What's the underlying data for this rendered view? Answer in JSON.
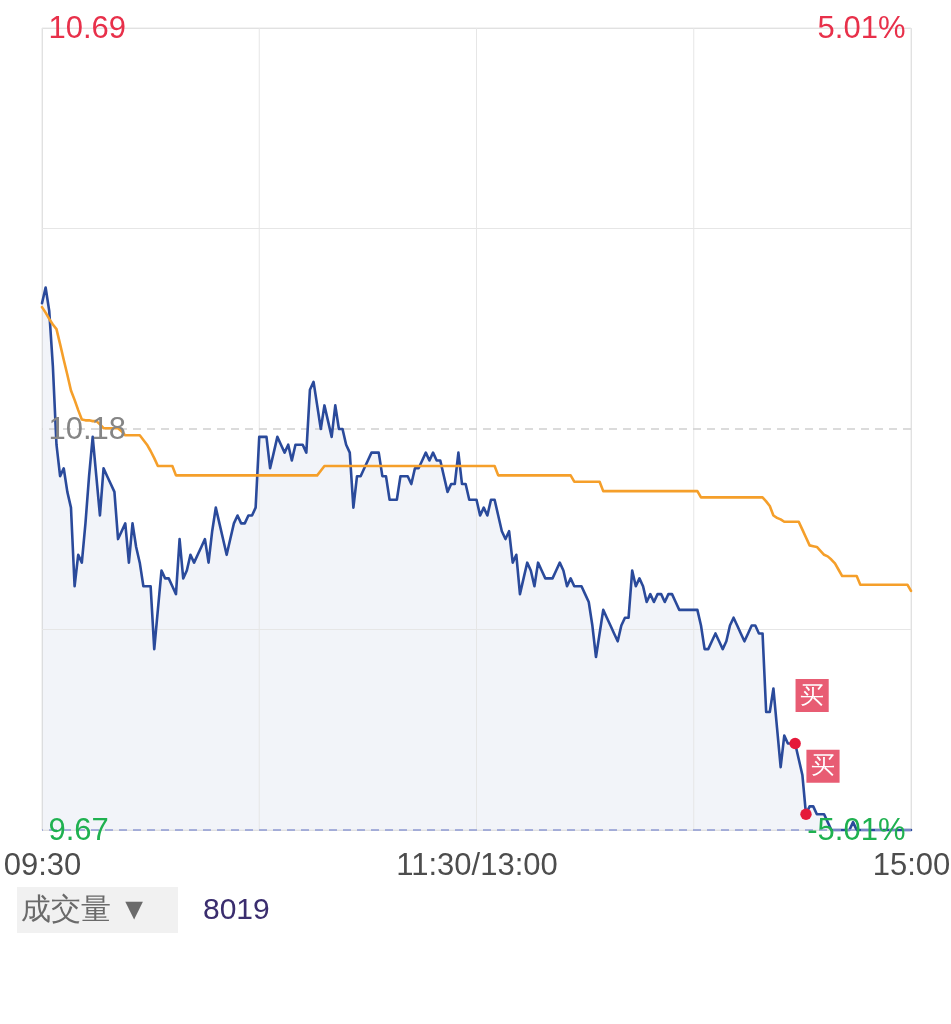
{
  "chart_data": {
    "type": "area",
    "categories": [
      "09:30",
      null,
      null,
      null,
      null,
      null,
      null,
      null,
      null,
      null,
      null,
      null,
      null,
      null,
      null,
      null,
      null,
      null,
      null,
      null,
      null,
      null,
      null,
      null,
      null,
      null,
      null,
      null,
      null,
      null,
      null,
      null,
      null,
      null,
      null,
      null,
      null,
      null,
      null,
      null,
      null,
      null,
      null,
      null,
      null,
      null,
      null,
      null,
      null,
      null,
      null,
      null,
      null,
      null,
      null,
      null,
      null,
      null,
      null,
      null,
      null,
      null,
      null,
      null,
      null,
      null,
      null,
      null,
      null,
      null,
      null,
      null,
      null,
      null,
      null,
      null,
      null,
      null,
      null,
      null,
      null,
      null,
      null,
      null,
      null,
      null,
      null,
      null,
      null,
      null,
      null,
      null,
      null,
      null,
      null,
      null,
      null,
      null,
      null,
      null,
      null,
      null,
      null,
      null,
      null,
      null,
      null,
      null,
      null,
      null,
      null,
      null,
      null,
      null,
      null,
      null,
      null,
      null,
      null,
      null,
      "11:30/13:00",
      null,
      null,
      null,
      null,
      null,
      null,
      null,
      null,
      null,
      null,
      null,
      null,
      null,
      null,
      null,
      null,
      null,
      null,
      null,
      null,
      null,
      null,
      null,
      null,
      null,
      null,
      null,
      null,
      null,
      null,
      null,
      null,
      null,
      null,
      null,
      null,
      null,
      null,
      null,
      null,
      null,
      null,
      null,
      null,
      null,
      null,
      null,
      null,
      null,
      null,
      null,
      null,
      null,
      null,
      null,
      null,
      null,
      null,
      null,
      null,
      null,
      null,
      null,
      null,
      null,
      null,
      null,
      null,
      null,
      null,
      null,
      null,
      null,
      null,
      null,
      null,
      null,
      null,
      null,
      null,
      null,
      null,
      null,
      null,
      null,
      null,
      null,
      null,
      null,
      null,
      null,
      null,
      null,
      null,
      null,
      null,
      null,
      null,
      null,
      null,
      null,
      null,
      null,
      null,
      null,
      null,
      null,
      null,
      null,
      null,
      null,
      null,
      null,
      null,
      null,
      null,
      null,
      null,
      null,
      "15:00"
    ],
    "ylim": [
      9.67,
      10.69
    ],
    "yticks": [
      10.69,
      {
        "value": 10.435,
        "label": null
      },
      10.18,
      {
        "value": 9.925,
        "label": null
      },
      9.67
    ],
    "y2lim": [
      -5.01,
      5.01
    ],
    "y2ticks": [
      {
        "value": 5.01,
        "label": "5.01%"
      },
      {
        "value": -5.01,
        "label": "-5.01%"
      }
    ],
    "grid": true,
    "series": [
      {
        "color": "#2a4a9b",
        "values": [
          10.34,
          10.36,
          10.33,
          10.26,
          10.16,
          10.12,
          10.13,
          10.1,
          10.08,
          9.98,
          10.02,
          10.01,
          10.06,
          10.12,
          10.17,
          10.12,
          10.07,
          10.13,
          10.12,
          10.11,
          10.1,
          10.04,
          10.05,
          10.06,
          10.01,
          10.06,
          10.03,
          10.01,
          9.98,
          9.98,
          9.98,
          9.9,
          9.95,
          10.0,
          9.99,
          9.99,
          9.98,
          9.97,
          10.04,
          9.99,
          10.0,
          10.02,
          10.01,
          10.02,
          10.03,
          10.04,
          10.01,
          10.05,
          10.08,
          10.06,
          10.04,
          10.02,
          10.04,
          10.06,
          10.07,
          10.06,
          10.06,
          10.07,
          10.07,
          10.08,
          10.17,
          10.17,
          10.17,
          10.13,
          10.15,
          10.17,
          10.16,
          10.15,
          10.16,
          10.14,
          10.16,
          10.16,
          10.16,
          10.15,
          10.23,
          10.24,
          10.21,
          10.18,
          10.21,
          10.19,
          10.17,
          10.21,
          10.18,
          10.18,
          10.16,
          10.15,
          10.08,
          10.12,
          10.12,
          10.13,
          10.14,
          10.15,
          10.15,
          10.15,
          10.12,
          10.12,
          10.09,
          10.09,
          10.09,
          10.12,
          10.12,
          10.12,
          10.11,
          10.13,
          10.13,
          10.14,
          10.15,
          10.14,
          10.15,
          10.14,
          10.14,
          10.12,
          10.1,
          10.11,
          10.11,
          10.15,
          10.11,
          10.11,
          10.09,
          10.09,
          10.09,
          10.07,
          10.08,
          10.07,
          10.09,
          10.09,
          10.07,
          10.05,
          10.04,
          10.05,
          10.01,
          10.02,
          9.97,
          9.99,
          10.01,
          10.0,
          9.98,
          10.01,
          10.0,
          9.99,
          9.99,
          9.99,
          10.0,
          10.01,
          10.0,
          9.98,
          9.99,
          9.98,
          9.98,
          9.98,
          9.97,
          9.96,
          9.93,
          9.89,
          9.92,
          9.95,
          9.94,
          9.93,
          9.92,
          9.91,
          9.93,
          9.94,
          9.94,
          10.0,
          9.98,
          9.99,
          9.98,
          9.96,
          9.97,
          9.96,
          9.97,
          9.97,
          9.96,
          9.97,
          9.97,
          9.96,
          9.95,
          9.95,
          9.95,
          9.95,
          9.95,
          9.95,
          9.93,
          9.9,
          9.9,
          9.91,
          9.92,
          9.91,
          9.9,
          9.91,
          9.93,
          9.94,
          9.93,
          9.92,
          9.91,
          9.92,
          9.93,
          9.93,
          9.92,
          9.92,
          9.82,
          9.82,
          9.85,
          9.8,
          9.75,
          9.79,
          9.78,
          9.78,
          9.78,
          9.76,
          9.74,
          9.69,
          9.7,
          9.7,
          9.69,
          9.69,
          9.69,
          9.68,
          9.67,
          9.67,
          9.67,
          9.67,
          9.67,
          9.67,
          9.68,
          9.67,
          9.67,
          9.67,
          9.67,
          9.67,
          9.67,
          9.67,
          9.67,
          9.67,
          9.67,
          9.67,
          9.67,
          9.67,
          9.67,
          9.67,
          9.67
        ]
      },
      {
        "type": "line",
        "color": "#f59f2a",
        "values": [
          10.335,
          10.328,
          10.32,
          10.313,
          10.307,
          10.288,
          10.268,
          10.249,
          10.229,
          10.217,
          10.204,
          10.192,
          10.191,
          10.191,
          10.19,
          10.19,
          10.186,
          10.181,
          10.181,
          10.181,
          10.181,
          10.181,
          10.177,
          10.172,
          10.172,
          10.172,
          10.172,
          10.172,
          10.166,
          10.16,
          10.152,
          10.143,
          10.133,
          10.133,
          10.133,
          10.133,
          10.133,
          10.121,
          10.121,
          10.121,
          10.121,
          10.121,
          10.121,
          10.121,
          10.121,
          10.121,
          10.121,
          10.121,
          10.121,
          10.121,
          10.121,
          10.121,
          10.121,
          10.121,
          10.121,
          10.121,
          10.121,
          10.121,
          10.121,
          10.121,
          10.121,
          10.121,
          10.121,
          10.121,
          10.121,
          10.121,
          10.121,
          10.121,
          10.121,
          10.121,
          10.121,
          10.121,
          10.121,
          10.121,
          10.121,
          10.121,
          10.121,
          10.127,
          10.133,
          10.133,
          10.133,
          10.133,
          10.133,
          10.133,
          10.133,
          10.133,
          10.133,
          10.133,
          10.133,
          10.133,
          10.133,
          10.133,
          10.133,
          10.133,
          10.133,
          10.133,
          10.133,
          10.133,
          10.133,
          10.133,
          10.133,
          10.133,
          10.133,
          10.133,
          10.133,
          10.133,
          10.133,
          10.133,
          10.133,
          10.133,
          10.133,
          10.133,
          10.133,
          10.133,
          10.133,
          10.133,
          10.133,
          10.133,
          10.133,
          10.133,
          10.133,
          10.133,
          10.133,
          10.133,
          10.133,
          10.133,
          10.121,
          10.121,
          10.121,
          10.121,
          10.121,
          10.121,
          10.121,
          10.121,
          10.121,
          10.121,
          10.121,
          10.121,
          10.121,
          10.121,
          10.121,
          10.121,
          10.121,
          10.121,
          10.121,
          10.121,
          10.121,
          10.113,
          10.113,
          10.113,
          10.113,
          10.113,
          10.113,
          10.113,
          10.113,
          10.101,
          10.101,
          10.101,
          10.101,
          10.101,
          10.101,
          10.101,
          10.101,
          10.101,
          10.101,
          10.101,
          10.101,
          10.101,
          10.101,
          10.101,
          10.101,
          10.101,
          10.101,
          10.101,
          10.101,
          10.101,
          10.101,
          10.101,
          10.101,
          10.101,
          10.101,
          10.101,
          10.093,
          10.093,
          10.093,
          10.093,
          10.093,
          10.093,
          10.093,
          10.093,
          10.093,
          10.093,
          10.093,
          10.093,
          10.093,
          10.093,
          10.093,
          10.093,
          10.093,
          10.093,
          10.088,
          10.082,
          10.07,
          10.067,
          10.065,
          10.062,
          10.062,
          10.062,
          10.062,
          10.062,
          10.052,
          10.042,
          10.032,
          10.031,
          10.03,
          10.025,
          10.02,
          10.018,
          10.014,
          10.009,
          10.001,
          9.993,
          9.993,
          9.993,
          9.993,
          9.993,
          9.982,
          9.982,
          9.982,
          9.982,
          9.982,
          9.982,
          9.982,
          9.982,
          9.982,
          9.982,
          9.982,
          9.982,
          9.982,
          9.982,
          9.974
        ]
      },
      {
        "type": "scatter",
        "color": "#e5193a",
        "values": [
          null,
          null,
          null,
          null,
          null,
          null,
          null,
          null,
          null,
          null,
          null,
          null,
          null,
          null,
          null,
          null,
          null,
          null,
          null,
          null,
          null,
          null,
          null,
          null,
          null,
          null,
          null,
          null,
          null,
          null,
          null,
          null,
          null,
          null,
          null,
          null,
          null,
          null,
          null,
          null,
          null,
          null,
          null,
          null,
          null,
          null,
          null,
          null,
          null,
          null,
          null,
          null,
          null,
          null,
          null,
          null,
          null,
          null,
          null,
          null,
          null,
          null,
          null,
          null,
          null,
          null,
          null,
          null,
          null,
          null,
          null,
          null,
          null,
          null,
          null,
          null,
          null,
          null,
          null,
          null,
          null,
          null,
          null,
          null,
          null,
          null,
          null,
          null,
          null,
          null,
          null,
          null,
          null,
          null,
          null,
          null,
          null,
          null,
          null,
          null,
          null,
          null,
          null,
          null,
          null,
          null,
          null,
          null,
          null,
          null,
          null,
          null,
          null,
          null,
          null,
          null,
          null,
          null,
          null,
          null,
          null,
          null,
          null,
          null,
          null,
          null,
          null,
          null,
          null,
          null,
          null,
          null,
          null,
          null,
          null,
          null,
          null,
          null,
          null,
          null,
          null,
          null,
          null,
          null,
          null,
          null,
          null,
          null,
          null,
          null,
          null,
          null,
          null,
          null,
          null,
          null,
          null,
          null,
          null,
          null,
          null,
          null,
          null,
          null,
          null,
          null,
          null,
          null,
          null,
          null,
          null,
          null,
          null,
          null,
          null,
          null,
          null,
          null,
          null,
          null,
          null,
          null,
          null,
          null,
          null,
          null,
          null,
          null,
          null,
          null,
          null,
          null,
          null,
          null,
          null,
          null,
          null,
          null,
          null,
          null,
          null,
          null,
          null,
          null,
          null,
          null,
          null,
          null,
          9.78,
          null,
          null,
          9.69,
          null,
          null,
          null,
          null,
          null,
          null,
          null,
          null,
          null,
          null,
          null,
          null,
          null,
          null,
          null,
          null,
          null,
          null,
          null,
          null,
          null,
          null,
          null,
          null,
          null,
          null,
          null,
          null,
          null
        ],
        "value_labels": [
          null,
          null,
          null,
          null,
          null,
          null,
          null,
          null,
          null,
          null,
          null,
          null,
          null,
          null,
          null,
          null,
          null,
          null,
          null,
          null,
          null,
          null,
          null,
          null,
          null,
          null,
          null,
          null,
          null,
          null,
          null,
          null,
          null,
          null,
          null,
          null,
          null,
          null,
          null,
          null,
          null,
          null,
          null,
          null,
          null,
          null,
          null,
          null,
          null,
          null,
          null,
          null,
          null,
          null,
          null,
          null,
          null,
          null,
          null,
          null,
          null,
          null,
          null,
          null,
          null,
          null,
          null,
          null,
          null,
          null,
          null,
          null,
          null,
          null,
          null,
          null,
          null,
          null,
          null,
          null,
          null,
          null,
          null,
          null,
          null,
          null,
          null,
          null,
          null,
          null,
          null,
          null,
          null,
          null,
          null,
          null,
          null,
          null,
          null,
          null,
          null,
          null,
          null,
          null,
          null,
          null,
          null,
          null,
          null,
          null,
          null,
          null,
          null,
          null,
          null,
          null,
          null,
          null,
          null,
          null,
          null,
          null,
          null,
          null,
          null,
          null,
          null,
          null,
          null,
          null,
          null,
          null,
          null,
          null,
          null,
          null,
          null,
          null,
          null,
          null,
          null,
          null,
          null,
          null,
          null,
          null,
          null,
          null,
          null,
          null,
          null,
          null,
          null,
          null,
          null,
          null,
          null,
          null,
          null,
          null,
          null,
          null,
          null,
          null,
          null,
          null,
          null,
          null,
          null,
          null,
          null,
          null,
          null,
          null,
          null,
          null,
          null,
          null,
          null,
          null,
          null,
          null,
          null,
          null,
          null,
          null,
          null,
          null,
          null,
          null,
          null,
          null,
          null,
          null,
          null,
          null,
          null,
          null,
          null,
          null,
          null,
          null,
          null,
          null,
          null,
          null,
          null,
          null,
          "买",
          null,
          null,
          "买",
          null,
          null,
          null,
          null,
          null,
          null,
          null,
          null,
          null,
          null,
          null,
          null,
          null,
          null,
          null,
          null,
          null,
          null,
          null,
          null,
          null,
          null,
          null,
          null,
          null,
          null,
          null,
          null,
          null
        ]
      }
    ],
    "ref_lines": [
      {
        "axis": "y",
        "value": 10.18,
        "color": "#cfcfcf",
        "line_style": "dashed"
      },
      {
        "axis": "y2",
        "value": -5.01,
        "color": "#8f9bd3",
        "line_style": "dashed"
      }
    ],
    "annotations": [
      "成交量 ▼",
      "8019"
    ]
  }
}
